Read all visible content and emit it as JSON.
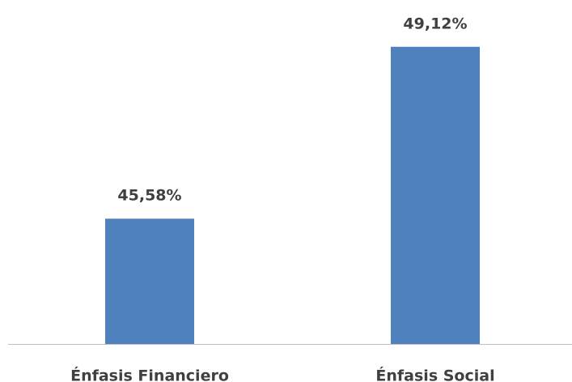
{
  "chart_data": {
    "type": "bar",
    "categories": [
      "Énfasis Financiero",
      "Énfasis Social"
    ],
    "values": [
      45.58,
      49.12
    ],
    "value_labels": [
      "45,58%",
      "49,12%"
    ],
    "color": "#4f81bd",
    "ylim": [
      43,
      50
    ]
  }
}
